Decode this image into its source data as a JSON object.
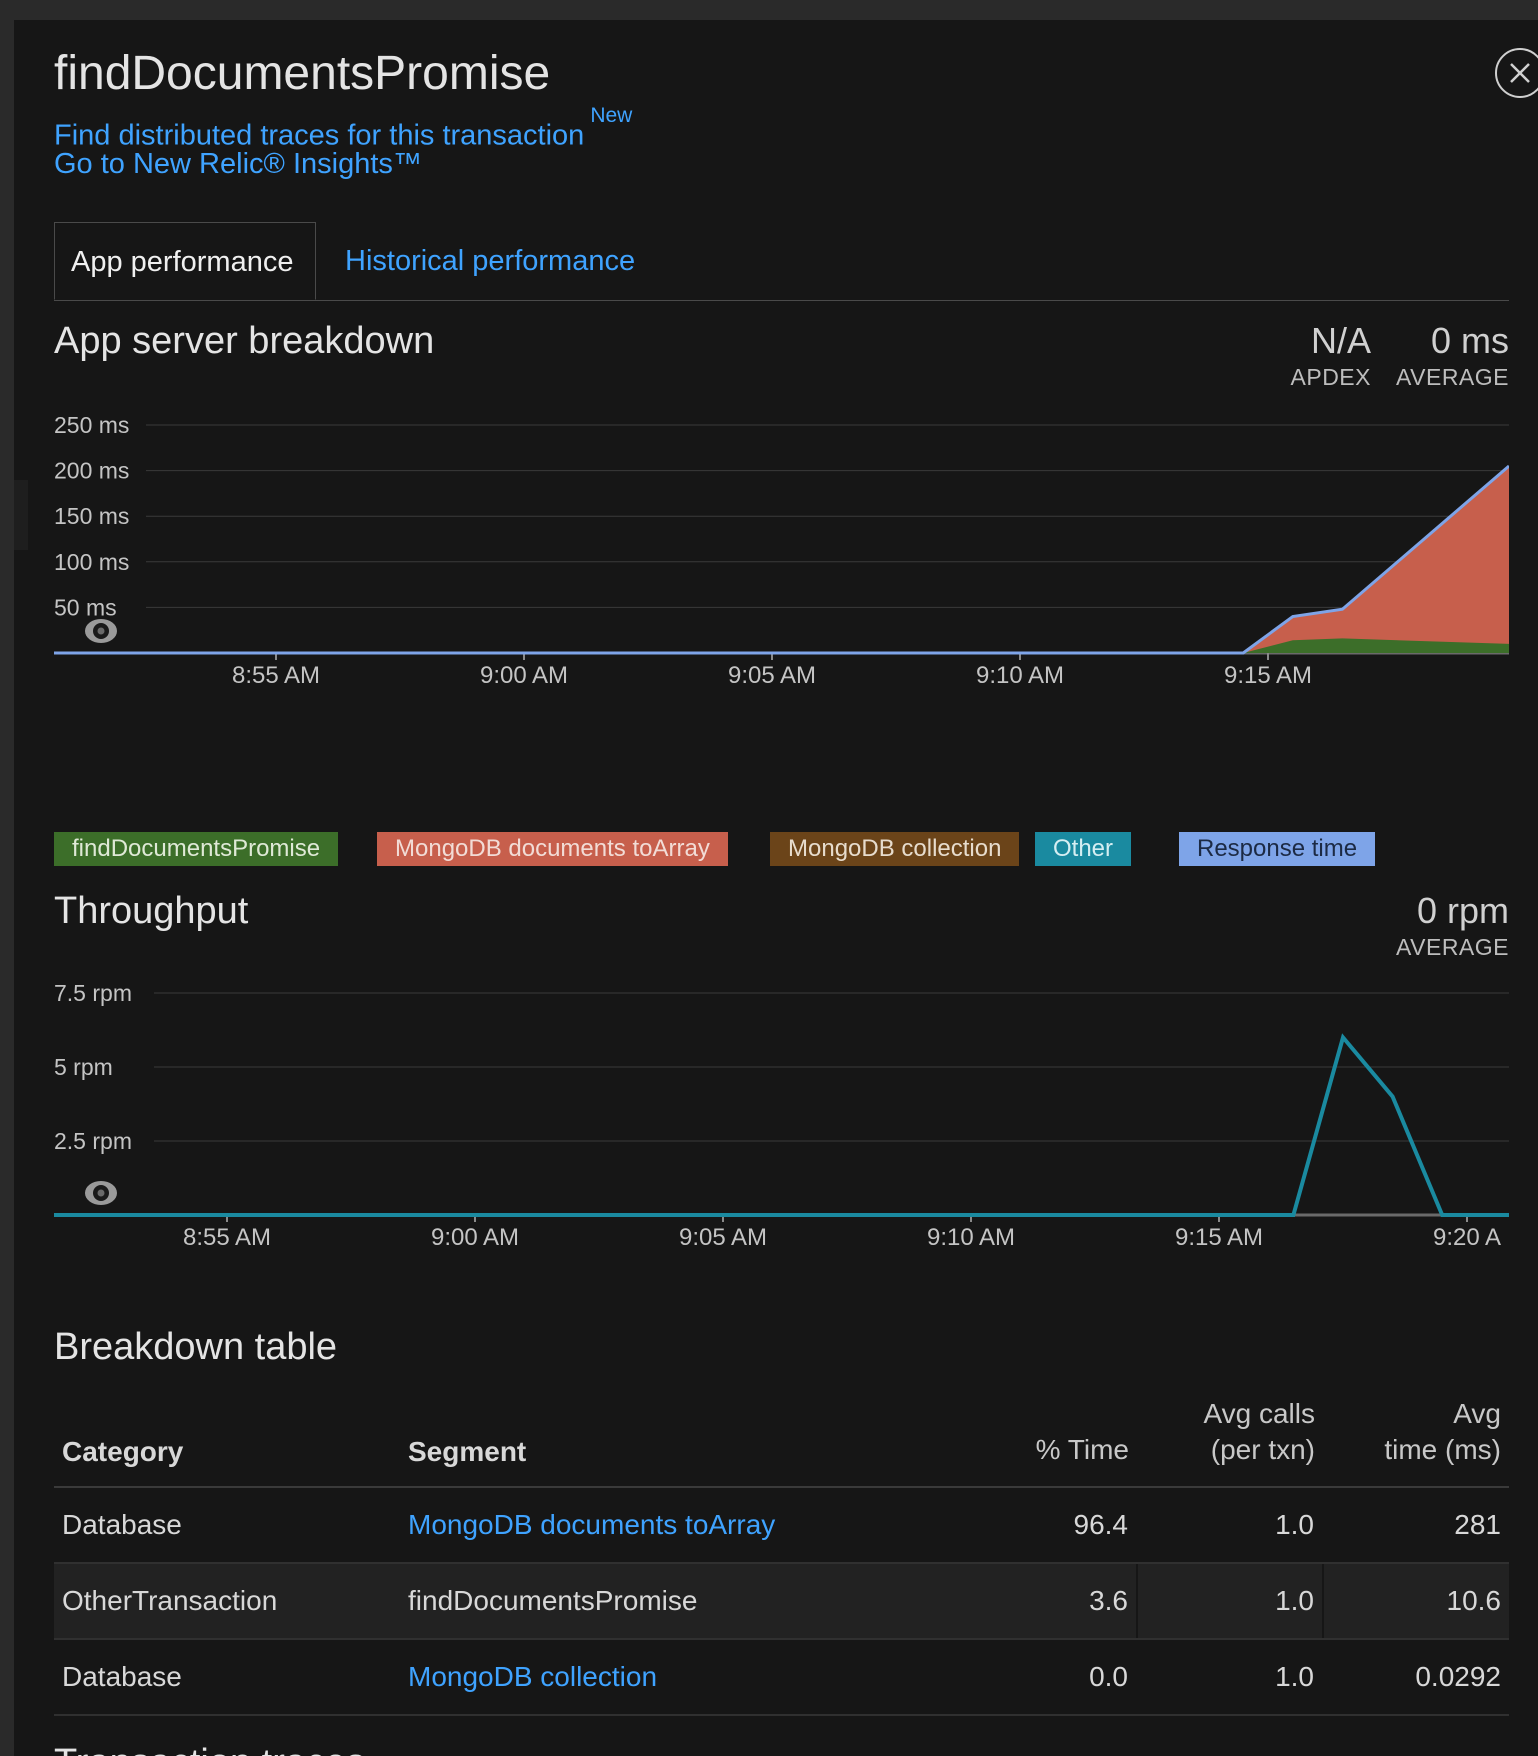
{
  "header": {
    "title": "findDocumentsPromise",
    "traces_link": "Find distributed traces for this transaction",
    "traces_badge": "New",
    "insights_link": "Go to New Relic® Insights™"
  },
  "tabs": [
    {
      "label": "App performance",
      "active": true
    },
    {
      "label": "Historical performance",
      "active": false
    }
  ],
  "breakdown": {
    "title": "App server breakdown",
    "apdex_value": "N/A",
    "apdex_label": "APDEX",
    "average_value": "0 ms",
    "average_label": "AVERAGE"
  },
  "throughput": {
    "title": "Throughput",
    "average_value": "0 rpm",
    "average_label": "AVERAGE"
  },
  "legend": [
    {
      "label": "findDocumentsPromise",
      "color": "#3c6e29"
    },
    {
      "label": "MongoDB documents toArray",
      "color": "#c75f4c"
    },
    {
      "label": "MongoDB collection",
      "color": "#6b4419"
    },
    {
      "label": "Other",
      "color": "#1a8aa0"
    },
    {
      "label": "Response time",
      "color": "#7ea4e8"
    }
  ],
  "chart_data": [
    {
      "type": "area",
      "title": "App server breakdown",
      "y_ticks": [
        "250 ms",
        "200 ms",
        "150 ms",
        "100 ms",
        "50 ms"
      ],
      "x_ticks": [
        "8:55 AM",
        "9:00 AM",
        "9:05 AM",
        "9:10 AM",
        "9:15 AM"
      ],
      "ylim": [
        0,
        250
      ],
      "x_minutes": [
        0,
        19.5,
        20.5,
        21.5,
        22.5
      ],
      "series": [
        {
          "name": "findDocumentsPromise",
          "color": "#3c6e29",
          "values": [
            0,
            0,
            14,
            16,
            10
          ]
        },
        {
          "name": "MongoDB documents toArray",
          "color": "#c75f4c",
          "values": [
            0,
            0,
            26,
            32,
            195
          ]
        },
        {
          "name": "Response time",
          "color": "#7ea4e8",
          "values": [
            0,
            0,
            40,
            48,
            205
          ]
        }
      ]
    },
    {
      "type": "line",
      "title": "Throughput",
      "y_ticks": [
        "7.5 rpm",
        "5 rpm",
        "2.5 rpm"
      ],
      "x_ticks": [
        "8:55 AM",
        "9:00 AM",
        "9:05 AM",
        "9:10 AM",
        "9:15 AM",
        "9:20 A"
      ],
      "ylim": [
        0,
        7.5
      ],
      "x_minutes": [
        0,
        21.5,
        22.5,
        23.5,
        24.5,
        26
      ],
      "series": [
        {
          "name": "Other",
          "color": "#1a8aa0",
          "values": [
            0,
            0,
            6,
            4,
            0,
            0
          ]
        }
      ]
    }
  ],
  "table": {
    "title": "Breakdown table",
    "headers": {
      "category": "Category",
      "segment": "Segment",
      "pct_time": "% Time",
      "avg_calls_1": "Avg calls",
      "avg_calls_2": "(per txn)",
      "avg_time_1": "Avg",
      "avg_time_2": "time (ms)"
    },
    "rows": [
      {
        "category": "Database",
        "segment": "MongoDB documents toArray",
        "segment_link": true,
        "pct_time": "96.4",
        "avg_calls": "1.0",
        "avg_time": "281"
      },
      {
        "category": "OtherTransaction",
        "segment": "findDocumentsPromise",
        "segment_link": false,
        "pct_time": "3.6",
        "avg_calls": "1.0",
        "avg_time": "10.6"
      },
      {
        "category": "Database",
        "segment": "MongoDB collection",
        "segment_link": true,
        "pct_time": "0.0",
        "avg_calls": "1.0",
        "avg_time": "0.0292"
      }
    ]
  },
  "next_section": {
    "title": "Transaction traces"
  }
}
